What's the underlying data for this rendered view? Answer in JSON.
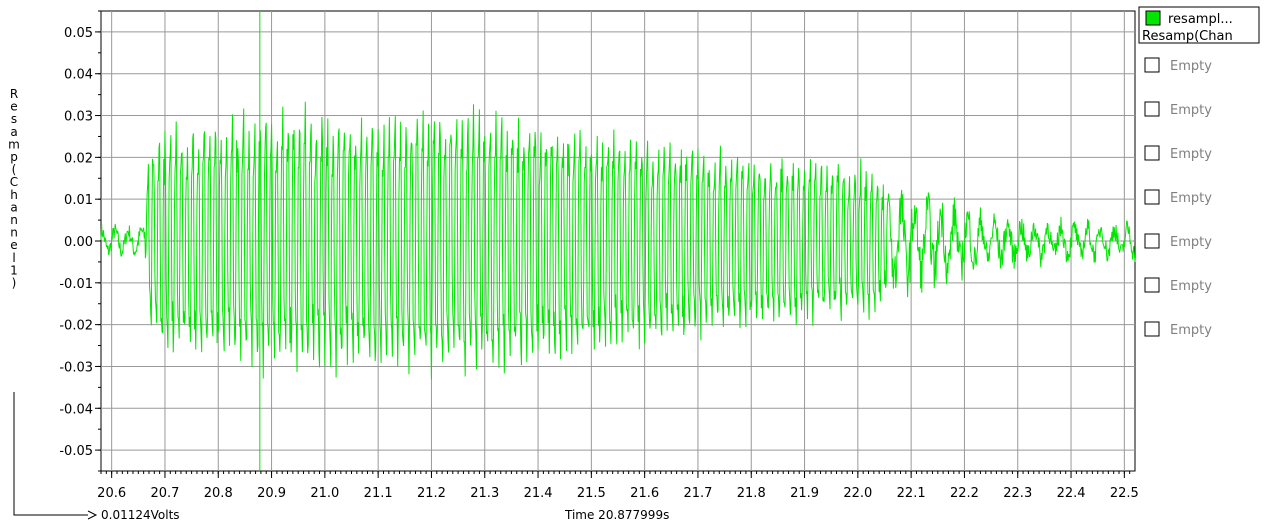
{
  "chart_data": {
    "type": "line",
    "title": "",
    "ylabel": "Resamp(Channel1)",
    "xlabel_readout": "Time 20.877999s",
    "ylabel_readout": "0.01124Volts",
    "xlim": [
      20.58,
      22.52
    ],
    "ylim": [
      -0.055,
      0.055
    ],
    "grid": true,
    "legend_position": "right",
    "x_ticks": [
      "20.6",
      "20.7",
      "20.8",
      "20.9",
      "21.0",
      "21.1",
      "21.2",
      "21.3",
      "21.4",
      "21.5",
      "21.6",
      "21.7",
      "21.8",
      "21.9",
      "22.0",
      "22.1",
      "22.2",
      "22.3",
      "22.4",
      "22.5"
    ],
    "y_ticks": [
      "0.05",
      "0.04",
      "0.03",
      "0.02",
      "0.01",
      "0.00",
      "-0.01",
      "-0.02",
      "-0.03",
      "-0.04",
      "-0.05"
    ],
    "cursor_x": 20.878,
    "series_color": "#00e600",
    "envelope": {
      "x": [
        20.58,
        20.66,
        20.67,
        20.7,
        20.75,
        20.8,
        20.85,
        20.9,
        20.95,
        21.0,
        21.05,
        21.1,
        21.15,
        21.2,
        21.25,
        21.3,
        21.35,
        21.4,
        21.45,
        21.5,
        21.55,
        21.6,
        21.65,
        21.7,
        21.75,
        21.8,
        21.85,
        21.9,
        21.95,
        22.0,
        22.03,
        22.05,
        22.1,
        22.15,
        22.2,
        22.25,
        22.3,
        22.35,
        22.4,
        22.45,
        22.52
      ],
      "amplitude": [
        0.004,
        0.004,
        0.025,
        0.03,
        0.031,
        0.032,
        0.033,
        0.034,
        0.034,
        0.034,
        0.034,
        0.034,
        0.034,
        0.034,
        0.034,
        0.034,
        0.033,
        0.032,
        0.031,
        0.029,
        0.028,
        0.027,
        0.026,
        0.025,
        0.024,
        0.023,
        0.022,
        0.021,
        0.02,
        0.02,
        0.019,
        0.015,
        0.012,
        0.011,
        0.009,
        0.007,
        0.006,
        0.006,
        0.005,
        0.005,
        0.005
      ]
    },
    "samples_per_unit": 900
  },
  "legend": {
    "items": [
      {
        "label_line1": "resampl...",
        "label_line2": "Resamp(Chan",
        "color": "#00e600",
        "active": true
      },
      {
        "label": "Empty",
        "active": false
      },
      {
        "label": "Empty",
        "active": false
      },
      {
        "label": "Empty",
        "active": false
      },
      {
        "label": "Empty",
        "active": false
      },
      {
        "label": "Empty",
        "active": false
      },
      {
        "label": "Empty",
        "active": false
      },
      {
        "label": "Empty",
        "active": false
      }
    ]
  }
}
